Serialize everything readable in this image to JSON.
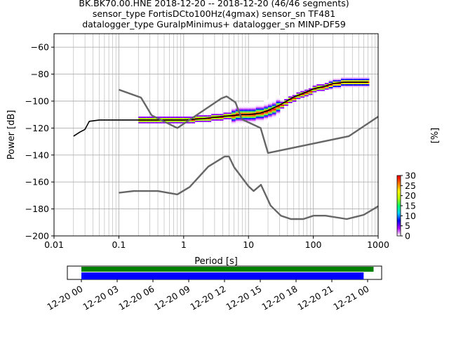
{
  "header": {
    "title_line1": "BK.BK70.00.HNE   2018-12-20 -- 2018-12-20  (46/46 segments)",
    "title_line2": "sensor_type FortisDCto100Hz(4gmax) sensor_sn TF481",
    "title_line3": "datalogger_type GuralpMinimus+ datalogger_sn MINP-DF59"
  },
  "chart_data": [
    {
      "type": "heatmap",
      "subtype": "probabilistic power spectral density",
      "xlabel": "Period [s]",
      "ylabel": "Power [dB]",
      "xscale": "log",
      "xlim": [
        0.01,
        1000
      ],
      "ylim": [
        -200,
        -50
      ],
      "x_ticks": [
        0.01,
        0.1,
        1,
        10,
        100,
        1000
      ],
      "x_tick_labels": [
        "0.01",
        "0.1",
        "1",
        "10",
        "100",
        "1000"
      ],
      "y_ticks": [
        -200,
        -180,
        -160,
        -140,
        -120,
        -100,
        -80,
        -60
      ],
      "y_tick_labels": [
        "−200",
        "−180",
        "−160",
        "−140",
        "−120",
        "−100",
        "−80",
        "−60"
      ],
      "grid": true,
      "colorbar": {
        "label": "[%]",
        "min": 0,
        "max": 30,
        "ticks": [
          0,
          5,
          10,
          15,
          20,
          25,
          30
        ],
        "tick_labels": [
          "0",
          "5",
          "10",
          "15",
          "20",
          "25",
          "30"
        ],
        "colors": [
          "#ffffff",
          "#b000ff",
          "#0000ff",
          "#00d0ff",
          "#00ff70",
          "#b0ff00",
          "#ffff00",
          "#ff8000",
          "#ff0000"
        ]
      },
      "series": [
        {
          "name": "",
          "role": "mode",
          "color": "#000000",
          "x": [
            0.02,
            0.025,
            0.03,
            0.035,
            0.05,
            0.1,
            0.2,
            0.5,
            1,
            2,
            3,
            5,
            8,
            10,
            15,
            20,
            30,
            50,
            80,
            100,
            150,
            200,
            300,
            500,
            700
          ],
          "y": [
            -126,
            -123,
            -121,
            -115,
            -114,
            -114,
            -114,
            -114,
            -114,
            -113,
            -112,
            -111,
            -110,
            -110,
            -109,
            -107,
            -103,
            -97,
            -93,
            -91,
            -89,
            -87,
            -86,
            -86,
            -86
          ]
        },
        {
          "name": "",
          "role": "noise-model-high",
          "color": "#666666",
          "x": [
            0.1,
            0.22,
            0.32,
            0.8,
            3.8,
            4.6,
            6.3,
            7.9,
            15.4,
            20,
            354.8,
            1000
          ],
          "y": [
            -91.5,
            -97.4,
            -110.5,
            -120,
            -98,
            -96.5,
            -101,
            -113.5,
            -120,
            -138.5,
            -126,
            -111.5
          ]
        },
        {
          "name": "",
          "role": "noise-model-low",
          "color": "#666666",
          "x": [
            0.1,
            0.17,
            0.4,
            0.8,
            1.24,
            2.4,
            4.3,
            5,
            6,
            10,
            12,
            15.6,
            21.9,
            31.6,
            45,
            70,
            101,
            154,
            328,
            600,
            1000
          ],
          "y": [
            -168,
            -166.7,
            -166.7,
            -169.2,
            -163.7,
            -148.6,
            -141.1,
            -141.1,
            -149,
            -163.2,
            -166.7,
            -162.1,
            -177.5,
            -185,
            -187.5,
            -187.5,
            -185,
            -185,
            -187.5,
            -184.4,
            -178
          ]
        }
      ]
    },
    {
      "type": "bar",
      "subtype": "data availability timeline",
      "x_tick_labels": [
        "12-20 00",
        "12-20 03",
        "12-20 06",
        "12-20 09",
        "12-20 12",
        "12-20 15",
        "12-20 18",
        "12-20 21",
        "12-21 00"
      ],
      "series": [
        {
          "name": "",
          "color": "#008000",
          "start": "12-20 00:00",
          "end": "12-21 00:30"
        },
        {
          "name": "",
          "color": "#0000ff",
          "start": "12-20 00:00",
          "end": "12-20 23:40"
        }
      ]
    }
  ]
}
